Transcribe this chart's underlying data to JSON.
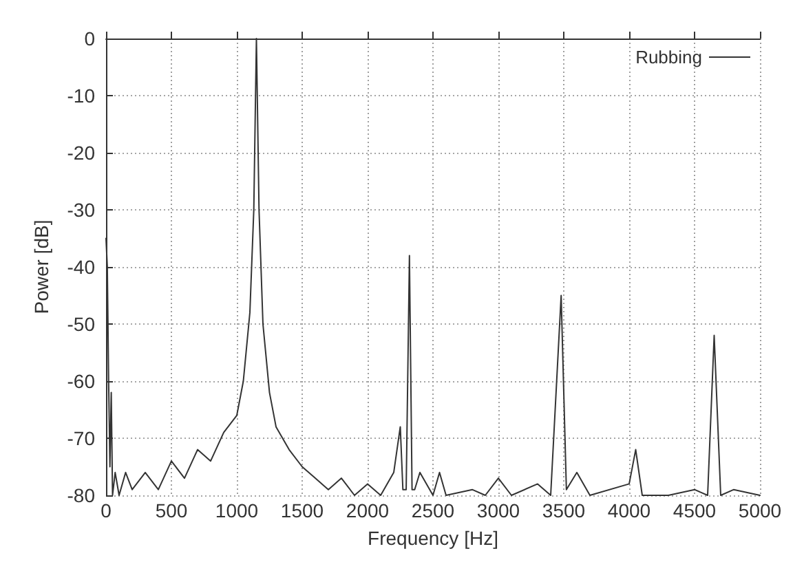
{
  "chart_data": {
    "type": "line",
    "xlabel": "Frequency [Hz]",
    "ylabel": "Power [dB]",
    "xlim": [
      0,
      5000
    ],
    "ylim": [
      -80,
      0
    ],
    "xticks": [
      0,
      500,
      1000,
      1500,
      2000,
      2500,
      3000,
      3500,
      4000,
      4500,
      5000
    ],
    "yticks": [
      -80,
      -70,
      -60,
      -50,
      -40,
      -30,
      -20,
      -10,
      0
    ],
    "grid": true,
    "legend": "top right",
    "marker": "none",
    "line_style": "solid",
    "series": [
      {
        "name": "Rubbing",
        "color": "#333333",
        "x": [
          0,
          10,
          20,
          30,
          40,
          50,
          70,
          100,
          150,
          200,
          300,
          400,
          500,
          600,
          700,
          800,
          900,
          1000,
          1050,
          1100,
          1130,
          1150,
          1170,
          1200,
          1250,
          1300,
          1400,
          1500,
          1600,
          1700,
          1800,
          1900,
          2000,
          2100,
          2200,
          2250,
          2270,
          2295,
          2320,
          2340,
          2360,
          2400,
          2500,
          2550,
          2600,
          2800,
          2900,
          3000,
          3100,
          3300,
          3400,
          3480,
          3520,
          3600,
          3700,
          4000,
          4050,
          4100,
          4300,
          4500,
          4600,
          4650,
          4700,
          4800,
          5000
        ],
        "values": [
          -35,
          -40,
          -60,
          -75,
          -62,
          -80,
          -76,
          -80,
          -76,
          -79,
          -76,
          -79,
          -74,
          -77,
          -72,
          -74,
          -69,
          -66,
          -60,
          -48,
          -30,
          0,
          -30,
          -50,
          -62,
          -68,
          -72,
          -75,
          -77,
          -79,
          -77,
          -80,
          -78,
          -80,
          -76,
          -68,
          -79,
          -79,
          -38,
          -79,
          -79,
          -76,
          -80,
          -76,
          -80,
          -79,
          -80,
          -77,
          -80,
          -78,
          -80,
          -45,
          -79,
          -76,
          -80,
          -78,
          -72,
          -80,
          -80,
          -79,
          -80,
          -52,
          -80,
          -79,
          -80
        ]
      }
    ]
  }
}
